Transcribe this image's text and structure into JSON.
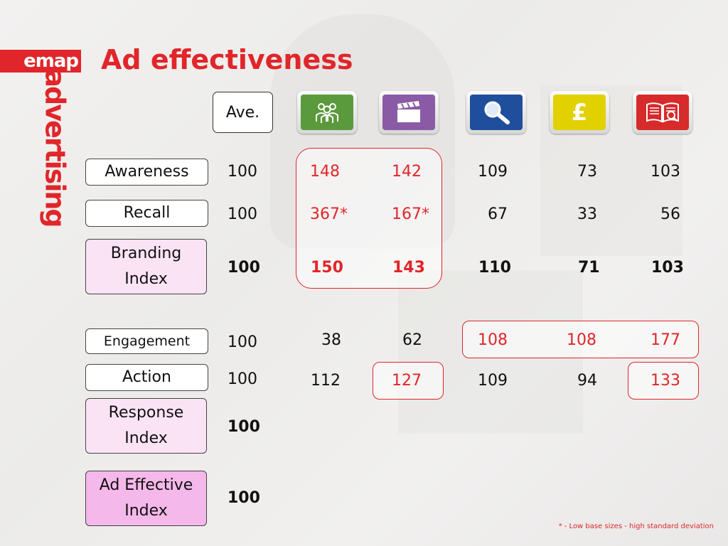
{
  "logo": {
    "brand": "emap",
    "tagline": "advertising"
  },
  "title": "Ad effectiveness",
  "baseline_header": "Ave.",
  "icons": [
    {
      "name": "community-icon",
      "color": "#5a9a3c"
    },
    {
      "name": "clapperboard-icon",
      "color": "#8a5aa6"
    },
    {
      "name": "magnifier-icon",
      "color": "#1f4e9c"
    },
    {
      "name": "pound-icon",
      "color": "#e2d100"
    },
    {
      "name": "book-icon",
      "color": "#d72a2a"
    }
  ],
  "rows": [
    {
      "label": "Awareness",
      "ave": "100",
      "values": [
        "148",
        "142",
        "109",
        "73",
        "103"
      ]
    },
    {
      "label": "Recall",
      "ave": "100",
      "values": [
        "367*",
        "167*",
        "67",
        "33",
        "56"
      ]
    },
    {
      "label": "Branding Index",
      "ave": "100",
      "values": [
        "150",
        "143",
        "110",
        "71",
        "103"
      ]
    },
    {
      "label": "Engagement",
      "ave": "100",
      "values": [
        "38",
        "62",
        "108",
        "108",
        "177"
      ]
    },
    {
      "label": "Action",
      "ave": "100",
      "values": [
        "112",
        "127",
        "109",
        "94",
        "133"
      ]
    },
    {
      "label": "Response Index",
      "ave": "100"
    },
    {
      "label": "Ad Effective Index",
      "ave": "100"
    }
  ],
  "footnote": "* - Low base sizes - high standard deviation",
  "colors": {
    "accent": "#e0262a",
    "index_fill": "#fbe3f6",
    "ad_index_fill": "#f5b8ea"
  }
}
